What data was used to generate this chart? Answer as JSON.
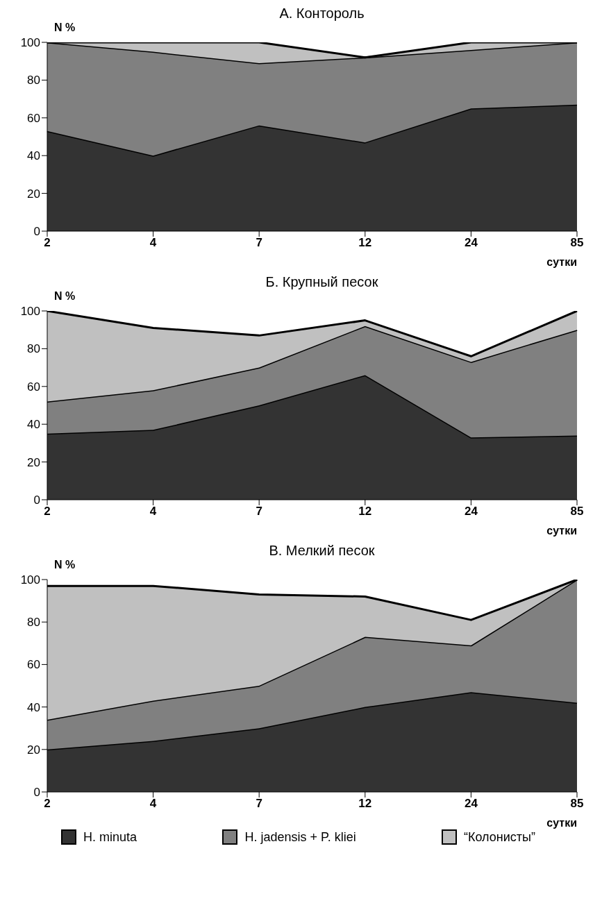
{
  "chart_data": [
    {
      "type": "area",
      "title": "А. Контороль",
      "ylabel": "N %",
      "xlabel": "сутки",
      "categories": [
        "2",
        "4",
        "7",
        "12",
        "24",
        "85"
      ],
      "stacked": true,
      "ylim": [
        0,
        100
      ],
      "yticks": [
        0,
        20,
        40,
        60,
        80,
        100
      ],
      "grid": false,
      "legend": false,
      "series": [
        {
          "color": "#333333",
          "values": [
            53,
            40,
            56,
            47,
            65,
            67
          ]
        },
        {
          "color": "#808080",
          "values": [
            47,
            55,
            33,
            45,
            31,
            33
          ]
        },
        {
          "color": "#c0c0c0",
          "values": [
            0,
            5,
            11,
            0,
            4,
            0
          ]
        }
      ]
    },
    {
      "type": "area",
      "title": "Б. Крупный песок",
      "ylabel": "N %",
      "xlabel": "сутки",
      "categories": [
        "2",
        "4",
        "7",
        "12",
        "24",
        "85"
      ],
      "stacked": true,
      "ylim": [
        0,
        100
      ],
      "yticks": [
        0,
        20,
        40,
        60,
        80,
        100
      ],
      "grid": false,
      "legend": false,
      "series": [
        {
          "color": "#333333",
          "values": [
            35,
            37,
            50,
            66,
            33,
            34
          ]
        },
        {
          "color": "#808080",
          "values": [
            17,
            21,
            20,
            26,
            40,
            56
          ]
        },
        {
          "color": "#c0c0c0",
          "values": [
            48,
            33,
            17,
            3,
            3,
            10
          ]
        }
      ]
    },
    {
      "type": "area",
      "title": "В. Мелкий песок",
      "ylabel": "N %",
      "xlabel": "сутки",
      "categories": [
        "2",
        "4",
        "7",
        "12",
        "24",
        "85"
      ],
      "stacked": true,
      "ylim": [
        0,
        100
      ],
      "yticks": [
        0,
        20,
        40,
        60,
        80,
        100
      ],
      "grid": false,
      "legend": "bottom",
      "series": [
        {
          "name": "H. minuta",
          "color": "#333333",
          "values": [
            20,
            24,
            30,
            40,
            47,
            42
          ]
        },
        {
          "name": "H. jadensis + P. kliei",
          "color": "#808080",
          "values": [
            14,
            19,
            20,
            33,
            22,
            58
          ]
        },
        {
          "name": "“Колонисты”",
          "color": "#c0c0c0",
          "values": [
            63,
            54,
            43,
            19,
            12,
            0
          ]
        }
      ]
    }
  ]
}
